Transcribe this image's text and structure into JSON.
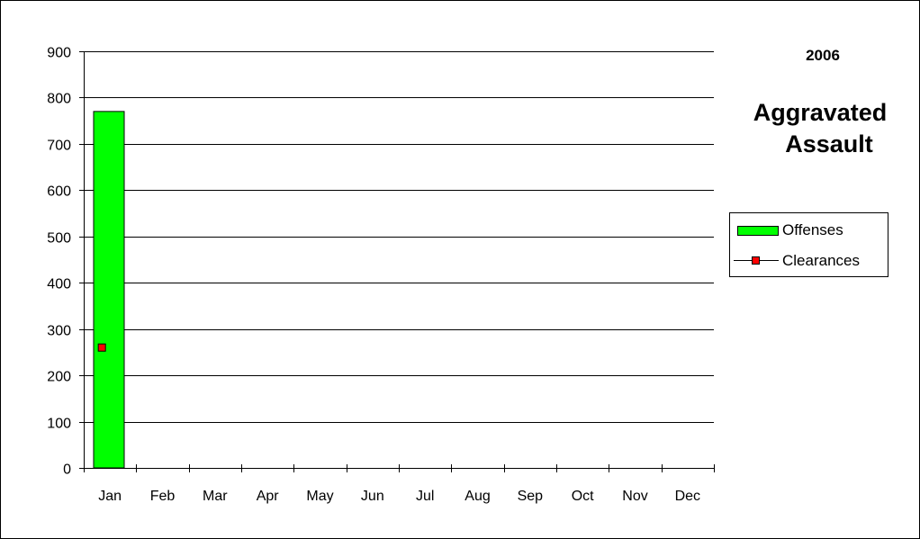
{
  "chart_data": {
    "type": "bar",
    "title": "Aggravated Assault",
    "title_lines": [
      "Aggravated",
      "Assault"
    ],
    "subtitle": "2006",
    "xlabel": "",
    "ylabel": "",
    "categories": [
      "Jan",
      "Feb",
      "Mar",
      "Apr",
      "May",
      "Jun",
      "Jul",
      "Aug",
      "Sep",
      "Oct",
      "Nov",
      "Dec"
    ],
    "ylim": [
      0,
      900
    ],
    "yticks": [
      0,
      100,
      200,
      300,
      400,
      500,
      600,
      700,
      800,
      900
    ],
    "grid": true,
    "legend_position": "right",
    "series": [
      {
        "name": "Offenses",
        "type": "bar",
        "color": "#00ff00",
        "values": [
          770,
          null,
          null,
          null,
          null,
          null,
          null,
          null,
          null,
          null,
          null,
          null
        ]
      },
      {
        "name": "Clearances",
        "type": "line",
        "color": "#ff0000",
        "values": [
          260,
          null,
          null,
          null,
          null,
          null,
          null,
          null,
          null,
          null,
          null,
          null
        ]
      }
    ]
  }
}
